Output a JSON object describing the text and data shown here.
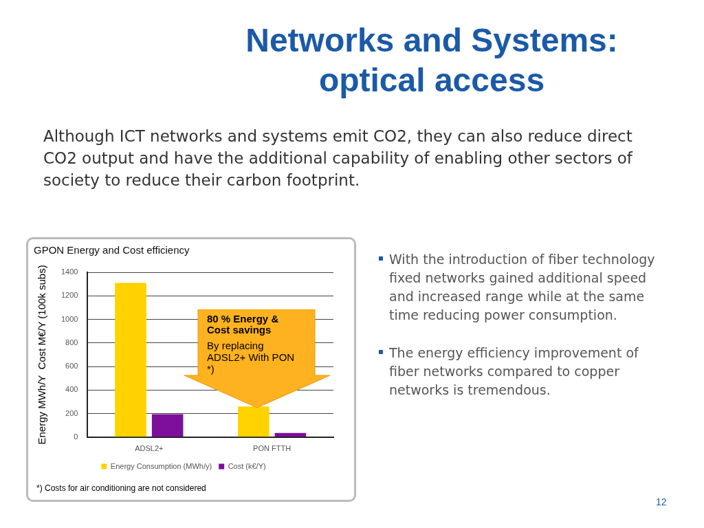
{
  "chart_data": {
    "type": "bar",
    "title": "GPON Energy and Cost efficiency",
    "ylabel": "Energy MWh/Y  Cost M€/Y (100k subs)",
    "categories": [
      "ADSL2+",
      "PON FTTH"
    ],
    "series": [
      {
        "name": "Energy Consumption (MWh/y)",
        "color": "#ffd200",
        "values": [
          1310,
          260
        ]
      },
      {
        "name": "Cost (k€/Y)",
        "color": "#7d0f9c",
        "values": [
          195,
          35
        ]
      }
    ],
    "ylim": [
      0,
      1400
    ],
    "yticks": [
      0,
      200,
      400,
      600,
      800,
      1000,
      1200,
      1400
    ],
    "grid": "y",
    "legend": "bottom",
    "annotations": [
      "Networks and Systems: optical access",
      "Although ICT networks and systems emit CO2, they can also reduce direct CO2 output and have the additional capability of enabling other sectors of society to reduce their carbon footprint.",
      "With the introduction of fiber technology fixed networks gained additional speed and increased range while at the same time reducing power consumption.",
      "The energy efficiency improvement of fiber networks compared to copper networks is tremendous.",
      "12",
      "80 % Energy & Cost savings",
      "By replacing ADSL2+ With PON *)",
      "*) Costs for air conditioning are not considered"
    ]
  }
}
